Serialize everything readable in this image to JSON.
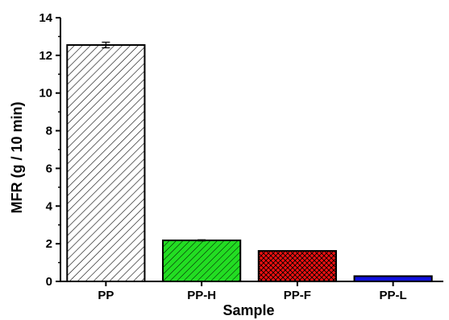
{
  "chart_data": {
    "type": "bar",
    "title": "",
    "xlabel": "Sample",
    "ylabel": "MFR (g / 10 min)",
    "ylim": [
      0,
      14
    ],
    "yticks": [
      0,
      2,
      4,
      6,
      8,
      10,
      12,
      14
    ],
    "categories": [
      "PP",
      "PP-H",
      "PP-F",
      "PP-L"
    ],
    "values": [
      12.55,
      2.18,
      1.62,
      0.28
    ],
    "errors": [
      0.15,
      0.03,
      0,
      0
    ],
    "grid": false,
    "legend": "none",
    "bar_colors": [
      "#ffffff",
      "#22dd22",
      "#ee1111",
      "#1111dd"
    ],
    "bar_patterns": [
      "diagonal-hatch",
      "diagonal-hatch",
      "crosshatch",
      "solid"
    ],
    "pattern_line_colors": [
      "#000000",
      "#000000",
      "#000000",
      "#1111dd"
    ]
  }
}
